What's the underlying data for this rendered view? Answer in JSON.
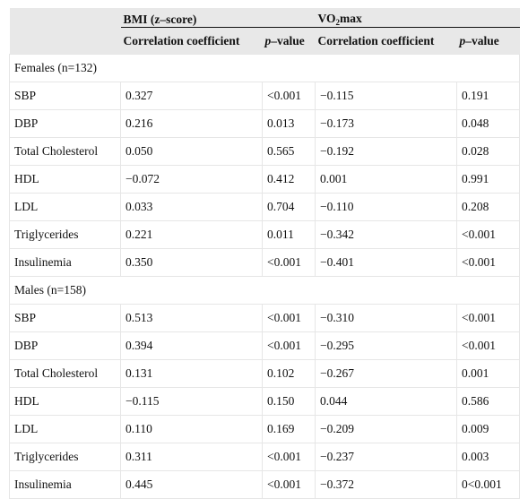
{
  "header": {
    "group1": "BMI (z–score)",
    "group2_prefix": "VO",
    "group2_sub": "2",
    "group2_suffix": "max",
    "col_corr": "Correlation coefficient",
    "col_p_italic": "p",
    "col_p_rest": "–value"
  },
  "sections": [
    {
      "label": "Females (n=132)",
      "rows": [
        {
          "var": "SBP",
          "bmi_r": "0.327",
          "bmi_p": "<0.001",
          "vo_r": "−0.115",
          "vo_p": "0.191"
        },
        {
          "var": "DBP",
          "bmi_r": "0.216",
          "bmi_p": "0.013",
          "vo_r": "−0.173",
          "vo_p": "0.048"
        },
        {
          "var": "Total Cholesterol",
          "bmi_r": "0.050",
          "bmi_p": "0.565",
          "vo_r": "−0.192",
          "vo_p": "0.028"
        },
        {
          "var": "HDL",
          "bmi_r": "−0.072",
          "bmi_p": "0.412",
          "vo_r": "0.001",
          "vo_p": "0.991"
        },
        {
          "var": "LDL",
          "bmi_r": "0.033",
          "bmi_p": "0.704",
          "vo_r": "−0.110",
          "vo_p": "0.208"
        },
        {
          "var": "Triglycerides",
          "bmi_r": "0.221",
          "bmi_p": "0.011",
          "vo_r": "−0.342",
          "vo_p": "<0.001"
        },
        {
          "var": "Insulinemia",
          "bmi_r": "0.350",
          "bmi_p": "<0.001",
          "vo_r": "−0.401",
          "vo_p": "<0.001"
        }
      ]
    },
    {
      "label": "Males (n=158)",
      "rows": [
        {
          "var": "SBP",
          "bmi_r": "0.513",
          "bmi_p": "<0.001",
          "vo_r": "−0.310",
          "vo_p": "<0.001"
        },
        {
          "var": "DBP",
          "bmi_r": "0.394",
          "bmi_p": "<0.001",
          "vo_r": "−0.295",
          "vo_p": "<0.001"
        },
        {
          "var": "Total Cholesterol",
          "bmi_r": "0.131",
          "bmi_p": "0.102",
          "vo_r": "−0.267",
          "vo_p": "0.001"
        },
        {
          "var": "HDL",
          "bmi_r": "−0.115",
          "bmi_p": "0.150",
          "vo_r": "0.044",
          "vo_p": "0.586"
        },
        {
          "var": "LDL",
          "bmi_r": "0.110",
          "bmi_p": "0.169",
          "vo_r": "−0.209",
          "vo_p": "0.009"
        },
        {
          "var": "Triglycerides",
          "bmi_r": "0.311",
          "bmi_p": "<0.001",
          "vo_r": "−0.237",
          "vo_p": "0.003"
        },
        {
          "var": "Insulinemia",
          "bmi_r": "0.445",
          "bmi_p": "<0.001",
          "vo_r": "−0.372",
          "vo_p": "0<0.001"
        }
      ]
    }
  ]
}
